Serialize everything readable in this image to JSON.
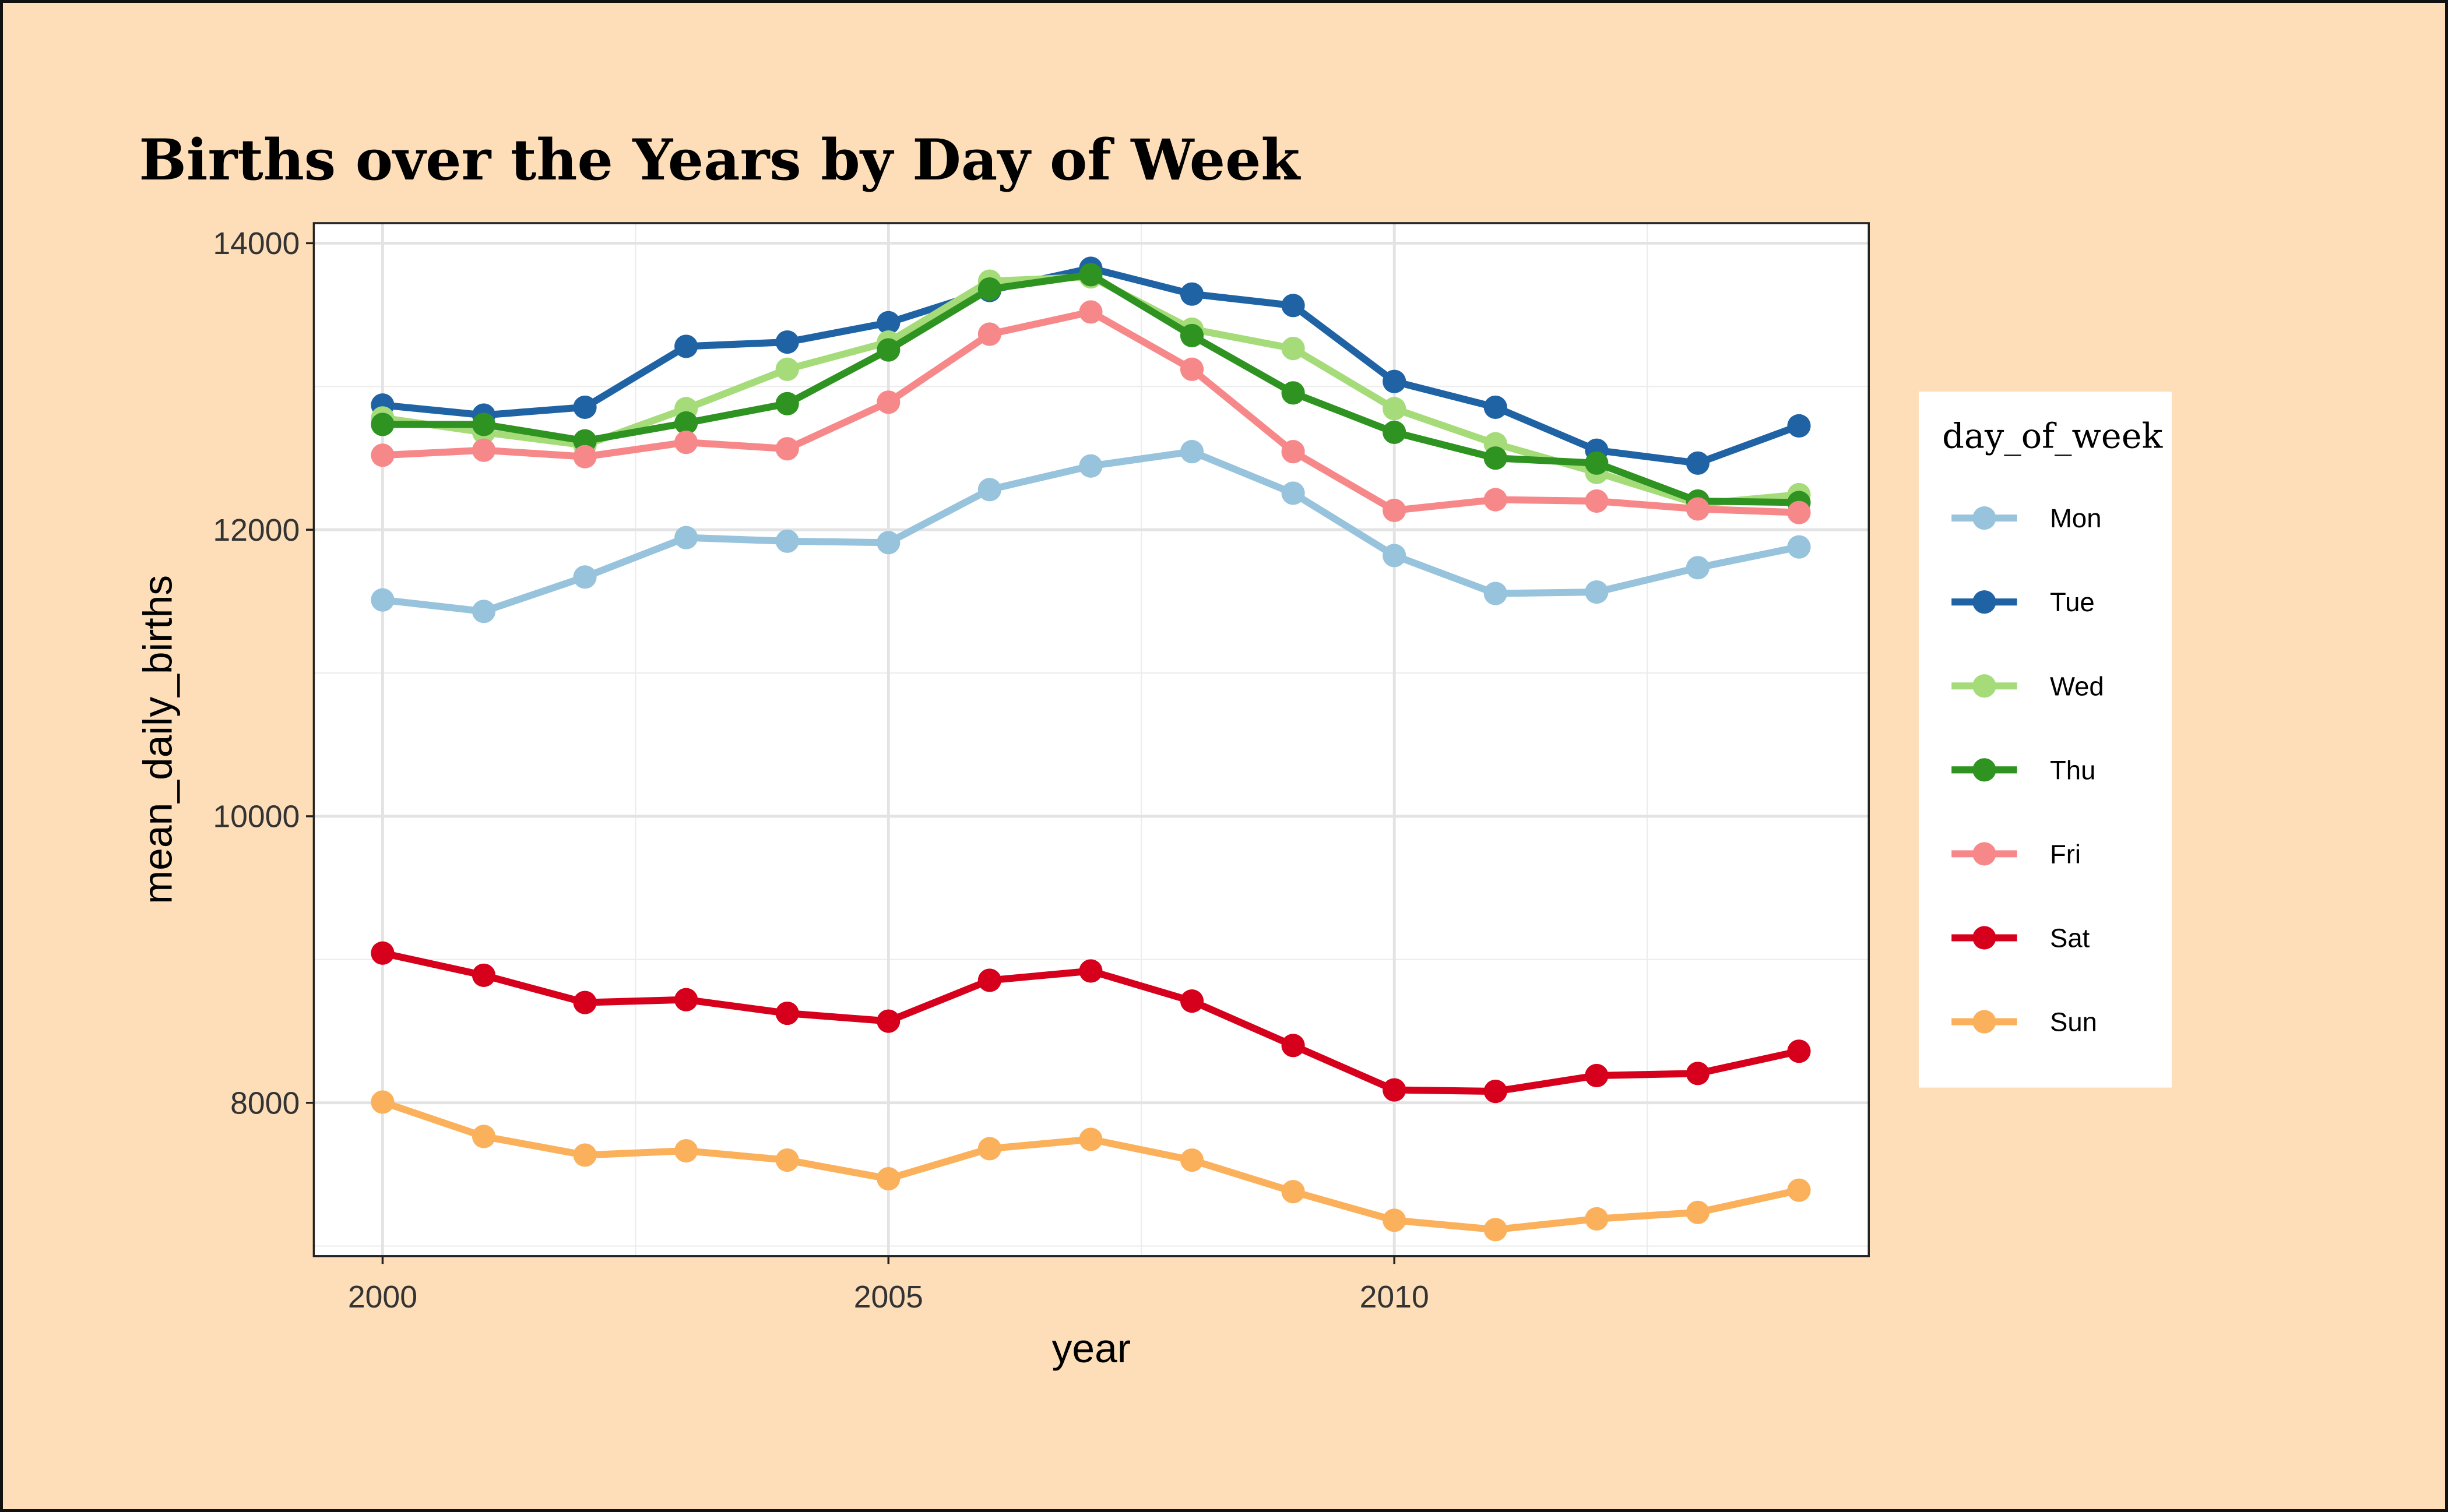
{
  "chart_data": {
    "type": "line",
    "title": "Births over the Years by Day of Week",
    "xlabel": "year",
    "ylabel": "mean_daily_births",
    "x": [
      2000,
      2001,
      2002,
      2003,
      2004,
      2005,
      2006,
      2007,
      2008,
      2009,
      2010,
      2011,
      2012,
      2013,
      2014
    ],
    "xlim": [
      1999.32,
      2014.69
    ],
    "ylim": [
      6930,
      14140
    ],
    "xticks": [
      2000,
      2005,
      2010
    ],
    "xtick_labels": [
      "2000",
      "2005",
      "2010"
    ],
    "yticks": [
      8000,
      10000,
      12000,
      14000
    ],
    "ytick_labels": [
      "8000",
      "10000",
      "12000",
      "14000"
    ],
    "grid": true,
    "background": "#fddeb8",
    "legend": {
      "title": "day_of_week",
      "placement": "right"
    },
    "series": [
      {
        "name": "Mon",
        "color": "#97c3dc",
        "values": [
          11510,
          11430,
          11670,
          11945,
          11920,
          11910,
          12280,
          12445,
          12545,
          12255,
          11820,
          11555,
          11565,
          11735,
          11880
        ]
      },
      {
        "name": "Tue",
        "color": "#1f63a5",
        "values": [
          12870,
          12800,
          12855,
          13280,
          13310,
          13445,
          13670,
          13825,
          13645,
          13565,
          13035,
          12855,
          12555,
          12465,
          12725
        ]
      },
      {
        "name": "Wed",
        "color": "#a6db7a",
        "values": [
          12780,
          12680,
          12590,
          12845,
          13120,
          13310,
          13735,
          13765,
          13400,
          13265,
          12845,
          12600,
          12400,
          12180,
          12245
        ]
      },
      {
        "name": "Thu",
        "color": "#2e9320",
        "values": [
          12735,
          12735,
          12620,
          12745,
          12880,
          13255,
          13680,
          13780,
          13355,
          12955,
          12680,
          12500,
          12465,
          12200,
          12190
        ]
      },
      {
        "name": "Fri",
        "color": "#f7888a",
        "values": [
          12520,
          12555,
          12510,
          12610,
          12565,
          12890,
          13365,
          13520,
          13120,
          12545,
          12135,
          12210,
          12200,
          12145,
          12120
        ]
      },
      {
        "name": "Sat",
        "color": "#d7001c",
        "values": [
          9045,
          8890,
          8700,
          8720,
          8625,
          8570,
          8855,
          8920,
          8710,
          8400,
          8090,
          8080,
          8190,
          8205,
          8360
        ]
      },
      {
        "name": "Sun",
        "color": "#fbb15c",
        "values": [
          8005,
          7765,
          7635,
          7665,
          7600,
          7470,
          7680,
          7745,
          7600,
          7380,
          7180,
          7115,
          7190,
          7235,
          7390
        ]
      }
    ]
  }
}
